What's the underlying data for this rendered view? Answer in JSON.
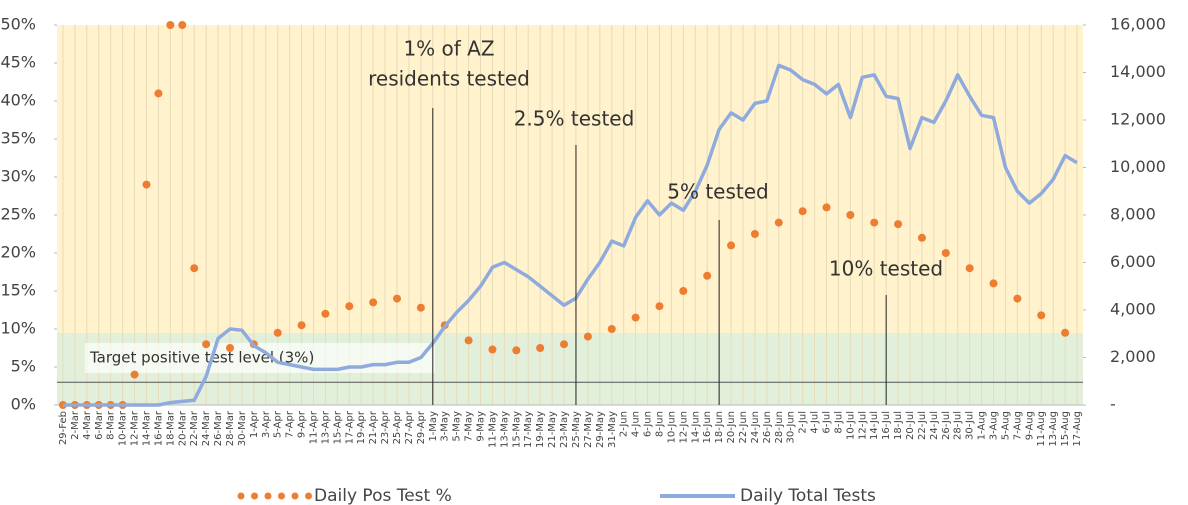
{
  "chart_data": {
    "type": "line",
    "categories": [
      "29-Feb",
      "2-Mar",
      "4-Mar",
      "6-Mar",
      "8-Mar",
      "10-Mar",
      "12-Mar",
      "14-Mar",
      "16-Mar",
      "18-Mar",
      "20-Mar",
      "22-Mar",
      "24-Mar",
      "26-Mar",
      "28-Mar",
      "30-Mar",
      "1-Apr",
      "3-Apr",
      "5-Apr",
      "7-Apr",
      "9-Apr",
      "11-Apr",
      "13-Apr",
      "15-Apr",
      "17-Apr",
      "19-Apr",
      "21-Apr",
      "23-Apr",
      "25-Apr",
      "27-Apr",
      "29-Apr",
      "1-May",
      "3-May",
      "5-May",
      "7-May",
      "9-May",
      "11-May",
      "13-May",
      "15-May",
      "17-May",
      "19-May",
      "21-May",
      "23-May",
      "25-May",
      "27-May",
      "29-May",
      "31-May",
      "2-Jun",
      "4-Jun",
      "6-Jun",
      "8-Jun",
      "10-Jun",
      "12-Jun",
      "14-Jun",
      "16-Jun",
      "18-Jun",
      "20-Jun",
      "22-Jun",
      "24-Jun",
      "26-Jun",
      "28-Jun",
      "30-Jun",
      "2-Jul",
      "4-Jul",
      "6-Jul",
      "8-Jul",
      "10-Jul",
      "12-Jul",
      "14-Jul",
      "16-Jul",
      "18-Jul",
      "20-Jul",
      "22-Jul",
      "24-Jul",
      "26-Jul",
      "28-Jul",
      "30-Jul",
      "1-Aug",
      "3-Aug",
      "5-Aug",
      "7-Aug",
      "9-Aug",
      "11-Aug",
      "13-Aug",
      "15-Aug",
      "17-Aug"
    ],
    "series": [
      {
        "name": "Daily Pos Test %",
        "color": "#ed7d31",
        "style": "dots",
        "axis": "y",
        "values": [
          0,
          0,
          0,
          0,
          0,
          0,
          4,
          29,
          41,
          50,
          50,
          18,
          8,
          null,
          7.5,
          null,
          8,
          null,
          9.5,
          null,
          10.5,
          null,
          12,
          null,
          13,
          null,
          13.5,
          null,
          14,
          null,
          12.8,
          null,
          10.5,
          null,
          8.5,
          null,
          7.3,
          null,
          7.2,
          null,
          7.5,
          null,
          8,
          null,
          9,
          null,
          10,
          null,
          11.5,
          null,
          13,
          null,
          15,
          null,
          17,
          null,
          21,
          null,
          22.5,
          null,
          24,
          null,
          25.5,
          null,
          26,
          null,
          25,
          null,
          24,
          null,
          23.8,
          null,
          22,
          null,
          20,
          null,
          18,
          null,
          16,
          null,
          14,
          null,
          11.8,
          null,
          9.5,
          null
        ]
      },
      {
        "name": "Daily Total Tests",
        "color": "#8faadc",
        "style": "line",
        "axis": "y2",
        "values": [
          0,
          0,
          0,
          0,
          0,
          0,
          0,
          0,
          0,
          100,
          150,
          200,
          1200,
          2800,
          3200,
          3150,
          2500,
          2200,
          1800,
          1700,
          1600,
          1500,
          1500,
          1500,
          1600,
          1600,
          1700,
          1700,
          1800,
          1800,
          2000,
          2600,
          3300,
          3900,
          4400,
          5000,
          5800,
          6000,
          5700,
          5400,
          5000,
          4600,
          4200,
          4500,
          5300,
          6000,
          6900,
          6700,
          7900,
          8600,
          8000,
          8500,
          8200,
          9000,
          10100,
          11600,
          12300,
          12000,
          12700,
          12800,
          14300,
          14100,
          13700,
          13500,
          13100,
          13500,
          12100,
          13800,
          13900,
          13000,
          12900,
          10800,
          12100,
          11900,
          12800,
          13900,
          13000,
          12200,
          12100,
          10000,
          9000,
          8500,
          8900,
          9500,
          10500,
          10200
        ]
      }
    ],
    "ylim": [
      0,
      50
    ],
    "yticks": [
      {
        "value": 0,
        "label": "0%"
      },
      {
        "value": 5,
        "label": "5%"
      },
      {
        "value": 10,
        "label": "10%"
      },
      {
        "value": 15,
        "label": "15%"
      },
      {
        "value": 20,
        "label": "20%"
      },
      {
        "value": 25,
        "label": "25%"
      },
      {
        "value": 30,
        "label": "30%"
      },
      {
        "value": 35,
        "label": "35%"
      },
      {
        "value": 40,
        "label": "40%"
      },
      {
        "value": 45,
        "label": "45%"
      },
      {
        "value": 50,
        "label": "50%"
      }
    ],
    "y2lim": [
      0,
      16000
    ],
    "y2ticks": [
      {
        "value": 0,
        "label": "-"
      },
      {
        "value": 2000,
        "label": "2,000"
      },
      {
        "value": 4000,
        "label": "4,000"
      },
      {
        "value": 6000,
        "label": "6,000"
      },
      {
        "value": 8000,
        "label": "8,000"
      },
      {
        "value": 10000,
        "label": "10,000"
      },
      {
        "value": 12000,
        "label": "12,000"
      },
      {
        "value": 14000,
        "label": "14,000"
      },
      {
        "value": 16000,
        "label": "16,000"
      }
    ],
    "grid": "x",
    "target": {
      "label": "Target positive test level (3%)",
      "value": 3
    },
    "annotations": [
      {
        "text": [
          "1% of AZ",
          "residents tested"
        ],
        "x": "1-May"
      },
      {
        "text": [
          "2.5% tested"
        ],
        "x": "25-May"
      },
      {
        "text": [
          "5% tested"
        ],
        "x": "18-Jun"
      },
      {
        "text": [
          "10% tested"
        ],
        "x": "16-Jul"
      }
    ],
    "legend": "bottom"
  }
}
